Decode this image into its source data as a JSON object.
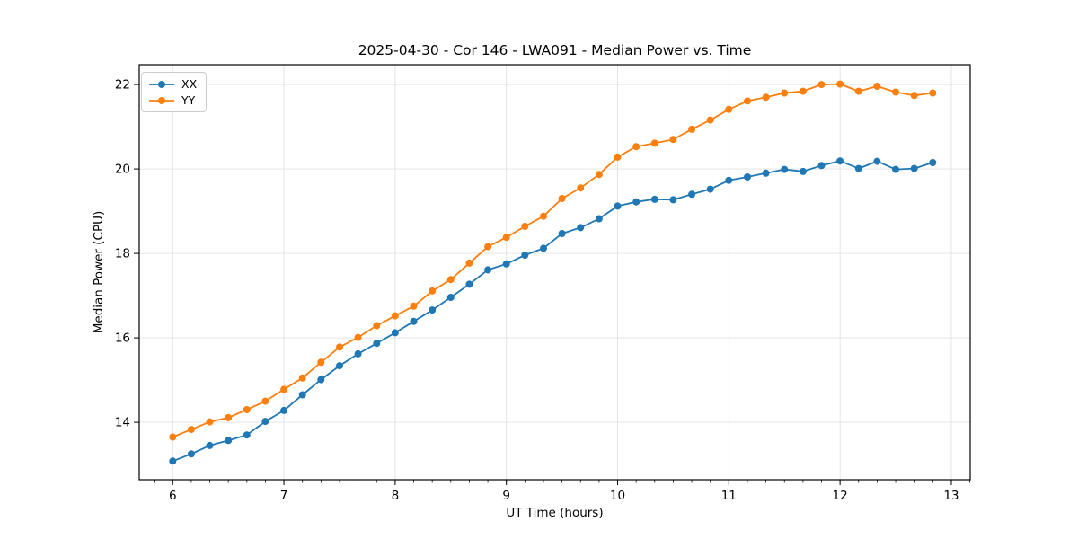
{
  "chart_data": {
    "type": "line",
    "title": "2025-04-30 - Cor 146 - LWA091 - Median Power vs. Time",
    "xlabel": "UT Time (hours)",
    "ylabel": "Median Power (CPU)",
    "xlim": [
      5.699,
      13.17
    ],
    "ylim": [
      12.64,
      22.47
    ],
    "x_ticks": [
      6,
      7,
      8,
      9,
      10,
      11,
      12,
      13
    ],
    "y_ticks": [
      14,
      16,
      18,
      20,
      22
    ],
    "minor_x_tick_step_hours": 0.166667,
    "grid": true,
    "grid_color": "#e0e0e0",
    "spine_color": "#000000",
    "background_color": "#ffffff",
    "legend_position": "upper-left",
    "x": [
      6.0,
      6.1667,
      6.3333,
      6.5,
      6.6667,
      6.8333,
      7.0,
      7.1667,
      7.3333,
      7.5,
      7.6667,
      7.8333,
      8.0,
      8.1667,
      8.3333,
      8.5,
      8.6667,
      8.8333,
      9.0,
      9.1667,
      9.3333,
      9.5,
      9.6667,
      9.8333,
      10.0,
      10.1667,
      10.3333,
      10.5,
      10.6667,
      10.8333,
      11.0,
      11.1667,
      11.3333,
      11.5,
      11.6667,
      11.8333,
      12.0,
      12.1667,
      12.3333,
      12.5,
      12.6667,
      12.8333
    ],
    "series": [
      {
        "name": "XX",
        "color": "#1f77b4",
        "values": [
          13.08,
          13.25,
          13.45,
          13.57,
          13.7,
          14.02,
          14.28,
          14.65,
          15.01,
          15.34,
          15.62,
          15.87,
          16.12,
          16.39,
          16.66,
          16.96,
          17.27,
          17.61,
          17.75,
          17.96,
          18.12,
          18.47,
          18.61,
          18.82,
          19.12,
          19.22,
          19.28,
          19.27,
          19.4,
          19.52,
          19.73,
          19.81,
          19.9,
          19.99,
          19.94,
          20.08,
          20.19,
          20.01,
          20.18,
          19.99,
          20.01,
          20.15
        ]
      },
      {
        "name": "YY",
        "color": "#ff7f0e",
        "values": [
          13.65,
          13.83,
          14.01,
          14.11,
          14.3,
          14.5,
          14.78,
          15.05,
          15.42,
          15.78,
          16.01,
          16.29,
          16.52,
          16.75,
          17.11,
          17.38,
          17.77,
          18.16,
          18.38,
          18.64,
          18.88,
          19.3,
          19.55,
          19.87,
          20.28,
          20.53,
          20.61,
          20.7,
          20.94,
          21.16,
          21.41,
          21.61,
          21.7,
          21.8,
          21.84,
          22.0,
          22.01,
          21.84,
          21.96,
          21.82,
          21.74,
          21.8
        ]
      }
    ]
  }
}
